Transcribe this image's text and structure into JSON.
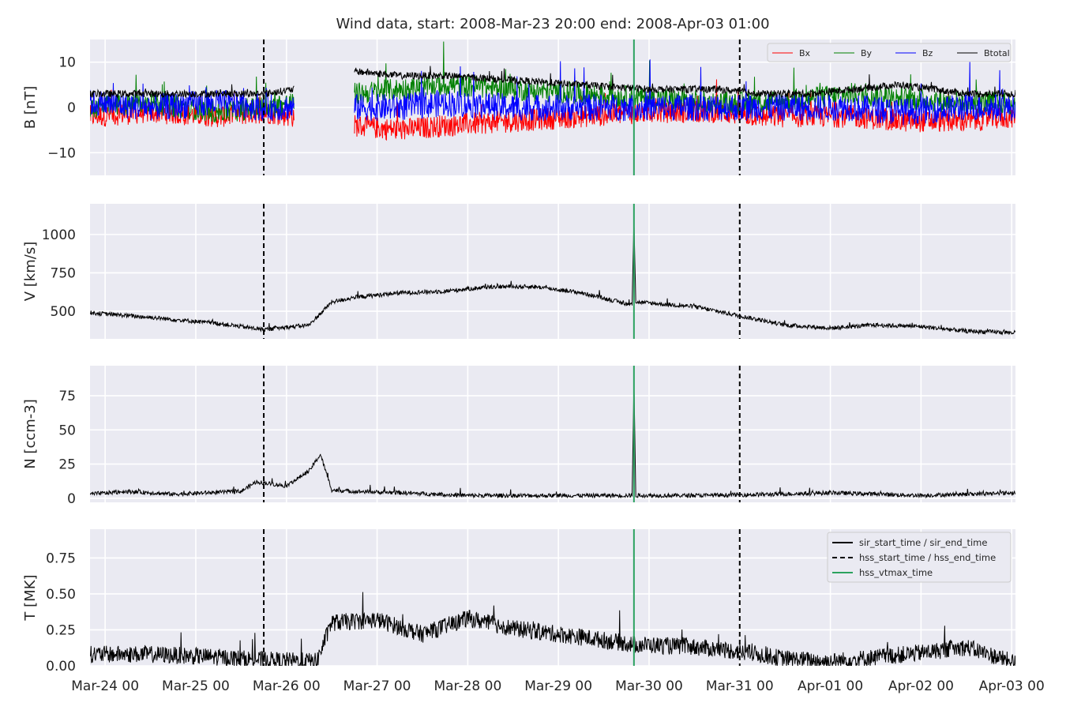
{
  "chart_data": {
    "type": "line",
    "title": "Wind data, start: 2008-Mar-23 20:00  end: 2008-Apr-03 01:00",
    "x_range": [
      "2008-03-23 20:00",
      "2008-04-03 01:00"
    ],
    "x_ticks": [
      {
        "value": "2008-03-24 00:00",
        "label": "Mar-24 00"
      },
      {
        "value": "2008-03-25 00:00",
        "label": "Mar-25 00"
      },
      {
        "value": "2008-03-26 00:00",
        "label": "Mar-26 00"
      },
      {
        "value": "2008-03-27 00:00",
        "label": "Mar-27 00"
      },
      {
        "value": "2008-03-28 00:00",
        "label": "Mar-28 00"
      },
      {
        "value": "2008-03-29 00:00",
        "label": "Mar-29 00"
      },
      {
        "value": "2008-03-30 00:00",
        "label": "Mar-30 00"
      },
      {
        "value": "2008-03-31 00:00",
        "label": "Mar-31 00"
      },
      {
        "value": "2008-04-01 00:00",
        "label": "Apr-01 00"
      },
      {
        "value": "2008-04-02 00:00",
        "label": "Apr-02 00"
      },
      {
        "value": "2008-04-03 00:00",
        "label": "Apr-03 00"
      }
    ],
    "grid": true,
    "background_color": "#eaeaf2",
    "events": {
      "hss_start_time": "2008-03-25 18:00",
      "hss_end_time": "2008-03-31 00:00",
      "hss_vtmax_time": "2008-03-29 20:00"
    },
    "event_colors": {
      "hss_start_end": "#000000",
      "hss_vtmax": "#2ca25f",
      "sir": "#000000"
    },
    "panels": [
      {
        "id": "B",
        "ylabel": "B [nT]",
        "ylim": [
          -15,
          15
        ],
        "yticks": [
          -10,
          0,
          10
        ],
        "ytick_labels": [
          "−10",
          "0",
          "10"
        ],
        "legend": {
          "placement": "top-right",
          "entries": [
            "Bx",
            "By",
            "Bz",
            "Btotal"
          ]
        },
        "series": [
          {
            "name": "Bx",
            "color": "#ff0000",
            "x": [
              "2008-03-23 20:00",
              "2008-03-24 12:00",
              "2008-03-25 06:00",
              "2008-03-25 18:00",
              "2008-03-26 02:00",
              "2008-03-26 13:00",
              "2008-03-26 18:00",
              "2008-03-27 06:00",
              "2008-03-27 18:00",
              "2008-03-28 12:00",
              "2008-03-29 06:00",
              "2008-03-30 00:00",
              "2008-03-30 18:00",
              "2008-03-31 06:00",
              "2008-03-31 18:00",
              "2008-04-01 06:00",
              "2008-04-01 18:00",
              "2008-04-02 12:00",
              "2008-04-03 01:00"
            ],
            "y": [
              -2,
              -1,
              -2,
              -1,
              -2,
              null,
              -4,
              -5,
              -4,
              -3,
              -2,
              -1,
              -1,
              -2,
              -2,
              -2,
              -3,
              -3,
              -2
            ],
            "amp": 2.5
          },
          {
            "name": "By",
            "color": "#008000",
            "x": [
              "2008-03-23 20:00",
              "2008-03-24 12:00",
              "2008-03-25 06:00",
              "2008-03-25 18:00",
              "2008-03-26 02:00",
              "2008-03-26 13:00",
              "2008-03-26 18:00",
              "2008-03-27 06:00",
              "2008-03-27 18:00",
              "2008-03-28 12:00",
              "2008-03-29 06:00",
              "2008-03-30 00:00",
              "2008-03-30 18:00",
              "2008-03-31 06:00",
              "2008-03-31 18:00",
              "2008-04-01 06:00",
              "2008-04-01 18:00",
              "2008-04-02 12:00",
              "2008-04-03 01:00"
            ],
            "y": [
              0,
              1,
              -1,
              0,
              1,
              null,
              3,
              4,
              5,
              4,
              3,
              2,
              1,
              1,
              2,
              3,
              2,
              1,
              1
            ],
            "amp": 2.5
          },
          {
            "name": "Bz",
            "color": "#0000ff",
            "x": [
              "2008-03-23 20:00",
              "2008-03-24 12:00",
              "2008-03-25 06:00",
              "2008-03-25 18:00",
              "2008-03-26 02:00",
              "2008-03-26 13:00",
              "2008-03-26 18:00",
              "2008-03-27 06:00",
              "2008-03-27 18:00",
              "2008-03-28 12:00",
              "2008-03-29 06:00",
              "2008-03-30 00:00",
              "2008-03-30 18:00",
              "2008-03-31 06:00",
              "2008-03-31 18:00",
              "2008-04-01 06:00",
              "2008-04-01 18:00",
              "2008-04-02 12:00",
              "2008-04-03 01:00"
            ],
            "y": [
              1,
              0,
              1,
              0,
              0,
              null,
              0,
              0,
              1,
              0,
              0,
              0,
              0,
              0,
              0,
              0,
              -1,
              0,
              0
            ],
            "amp": 3
          },
          {
            "name": "Btotal",
            "color": "#000000",
            "x": [
              "2008-03-23 20:00",
              "2008-03-24 12:00",
              "2008-03-25 06:00",
              "2008-03-25 18:00",
              "2008-03-26 02:00",
              "2008-03-26 13:00",
              "2008-03-26 18:00",
              "2008-03-27 06:00",
              "2008-03-27 18:00",
              "2008-03-28 12:00",
              "2008-03-29 06:00",
              "2008-03-30 00:00",
              "2008-03-30 18:00",
              "2008-03-31 06:00",
              "2008-03-31 18:00",
              "2008-04-01 06:00",
              "2008-04-01 18:00",
              "2008-04-02 12:00",
              "2008-04-03 01:00"
            ],
            "y": [
              3,
              3,
              3,
              3,
              4,
              null,
              8,
              7,
              7,
              6,
              5,
              4,
              4,
              3,
              3,
              4,
              5,
              3,
              3
            ],
            "amp": 0.8
          }
        ]
      },
      {
        "id": "V",
        "ylabel": "V [km/s]",
        "ylim": [
          320,
          1200
        ],
        "yticks": [
          500,
          750,
          1000
        ],
        "ytick_labels": [
          "500",
          "750",
          "1000"
        ],
        "series": [
          {
            "name": "V",
            "color": "#000000",
            "x": [
              "2008-03-23 20:00",
              "2008-03-24 12:00",
              "2008-03-25 06:00",
              "2008-03-25 18:00",
              "2008-03-26 06:00",
              "2008-03-26 12:00",
              "2008-03-26 18:00",
              "2008-03-27 06:00",
              "2008-03-27 18:00",
              "2008-03-28 06:00",
              "2008-03-28 18:00",
              "2008-03-29 06:00",
              "2008-03-29 19:30",
              "2008-03-29 20:00",
              "2008-03-29 20:30",
              "2008-03-30 12:00",
              "2008-03-31 00:00",
              "2008-03-31 12:00",
              "2008-04-01 00:00",
              "2008-04-01 12:00",
              "2008-04-02 00:00",
              "2008-04-02 12:00",
              "2008-04-03 01:00"
            ],
            "y": [
              490,
              460,
              420,
              380,
              410,
              560,
              590,
              620,
              630,
              660,
              660,
              620,
              540,
              1100,
              560,
              530,
              470,
              410,
              390,
              410,
              400,
              370,
              360
            ],
            "amp": 14
          }
        ]
      },
      {
        "id": "N",
        "ylabel": "N [ccm-3]",
        "ylim": [
          -3,
          97
        ],
        "yticks": [
          0,
          25,
          50,
          75
        ],
        "ytick_labels": [
          "0",
          "25",
          "50",
          "75"
        ],
        "series": [
          {
            "name": "N",
            "color": "#000000",
            "x": [
              "2008-03-23 20:00",
              "2008-03-24 06:00",
              "2008-03-24 18:00",
              "2008-03-25 12:00",
              "2008-03-25 16:00",
              "2008-03-26 00:00",
              "2008-03-26 06:00",
              "2008-03-26 09:00",
              "2008-03-26 12:00",
              "2008-03-26 18:00",
              "2008-03-27 06:00",
              "2008-03-28 00:00",
              "2008-03-29 00:00",
              "2008-03-29 19:30",
              "2008-03-29 20:00",
              "2008-03-29 20:30",
              "2008-03-30 12:00",
              "2008-03-31 12:00",
              "2008-04-01 00:00",
              "2008-04-02 00:00",
              "2008-04-03 01:00"
            ],
            "y": [
              3,
              5,
              3,
              5,
              12,
              9,
              20,
              32,
              6,
              5,
              4,
              2,
              2,
              2,
              85,
              2,
              2,
              3,
              4,
              2,
              4
            ],
            "amp": 1.5
          }
        ]
      },
      {
        "id": "T",
        "ylabel": "T [MK]",
        "ylim": [
          0,
          0.95
        ],
        "yticks": [
          0,
          0.25,
          0.5,
          0.75
        ],
        "ytick_labels": [
          "0.00",
          "0.25",
          "0.50",
          "0.75"
        ],
        "legend": {
          "placement": "top-right",
          "entries": [
            "sir_start_time / sir_end_time",
            "hss_start_time / hss_end_time",
            "hss_vtmax_time"
          ]
        },
        "series": [
          {
            "name": "T",
            "color": "#000000",
            "x": [
              "2008-03-23 20:00",
              "2008-03-24 12:00",
              "2008-03-25 06:00",
              "2008-03-25 18:00",
              "2008-03-26 08:00",
              "2008-03-26 12:00",
              "2008-03-27 00:00",
              "2008-03-27 12:00",
              "2008-03-28 00:00",
              "2008-03-28 12:00",
              "2008-03-29 06:00",
              "2008-03-29 20:00",
              "2008-03-30 12:00",
              "2008-03-31 00:00",
              "2008-03-31 12:00",
              "2008-04-01 00:00",
              "2008-04-01 12:00",
              "2008-04-02 00:00",
              "2008-04-02 12:00",
              "2008-04-03 01:00"
            ],
            "y": [
              0.08,
              0.08,
              0.06,
              0.04,
              0.03,
              0.3,
              0.32,
              0.22,
              0.33,
              0.26,
              0.2,
              0.15,
              0.13,
              0.1,
              0.05,
              0.03,
              0.06,
              0.09,
              0.13,
              0.02
            ],
            "amp": 0.06
          }
        ]
      }
    ],
    "legend_panel_B": [
      "Bx",
      "By",
      "Bz",
      "Btotal"
    ],
    "legend_panel_T": [
      "sir_start_time / sir_end_time",
      "hss_start_time / hss_end_time",
      "hss_vtmax_time"
    ]
  }
}
